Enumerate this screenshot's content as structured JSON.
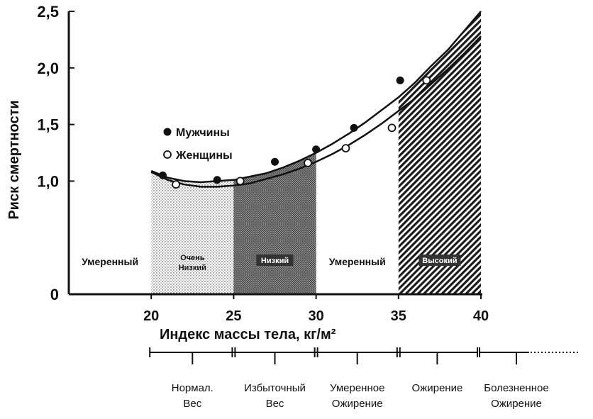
{
  "chart_data": {
    "type": "scatter",
    "title": "",
    "xlabel": "Индекс массы тела, кг/м²",
    "ylabel": "Риск смертности",
    "xlim": [
      15,
      40
    ],
    "ylim": [
      0,
      2.5
    ],
    "x_ticks": [
      "20",
      "25",
      "30",
      "35",
      "40"
    ],
    "y_ticks": [
      "0",
      "1,0",
      "1,5",
      "2,0",
      "2,5"
    ],
    "legend": {
      "position": "upper-left",
      "entries": [
        "Мужчины",
        "Женщины"
      ]
    },
    "series": [
      {
        "name": "Мужчины",
        "marker": "filled-circle",
        "points": [
          {
            "x": 20.7,
            "y": 1.05
          },
          {
            "x": 24.0,
            "y": 1.01
          },
          {
            "x": 27.5,
            "y": 1.17
          },
          {
            "x": 30.0,
            "y": 1.28
          },
          {
            "x": 32.3,
            "y": 1.47
          },
          {
            "x": 35.1,
            "y": 1.89
          }
        ]
      },
      {
        "name": "Женщины",
        "marker": "open-circle",
        "points": [
          {
            "x": 21.5,
            "y": 0.97
          },
          {
            "x": 25.4,
            "y": 1.0
          },
          {
            "x": 29.5,
            "y": 1.16
          },
          {
            "x": 31.8,
            "y": 1.29
          },
          {
            "x": 34.6,
            "y": 1.47
          },
          {
            "x": 36.7,
            "y": 1.89
          }
        ]
      }
    ],
    "fitted_curves": [
      {
        "series": "Мужчины",
        "x": [
          20,
          21,
          22,
          23,
          24,
          25,
          26,
          27,
          28,
          29,
          30,
          31,
          32,
          33,
          34,
          35,
          36,
          37,
          38,
          39,
          40
        ],
        "y": [
          1.09,
          1.03,
          1.0,
          0.99,
          1.0,
          1.01,
          1.04,
          1.07,
          1.12,
          1.18,
          1.25,
          1.33,
          1.42,
          1.52,
          1.63,
          1.74,
          1.87,
          2.02,
          2.16,
          2.33,
          2.5
        ]
      },
      {
        "series": "Женщины",
        "x": [
          20,
          21,
          22,
          23,
          24,
          25,
          26,
          27,
          28,
          29,
          30,
          31,
          32,
          33,
          34,
          35,
          36,
          37,
          38,
          39,
          40
        ],
        "y": [
          1.08,
          1.01,
          0.97,
          0.95,
          0.95,
          0.96,
          0.98,
          1.02,
          1.06,
          1.11,
          1.17,
          1.24,
          1.32,
          1.41,
          1.51,
          1.62,
          1.73,
          1.86,
          1.99,
          2.13,
          2.28
        ]
      }
    ],
    "risk_zones": [
      {
        "label": "Умеренный",
        "x_from": 15,
        "x_to": 20,
        "pattern": "none"
      },
      {
        "label": "Очень Низкий",
        "x_from": 20,
        "x_to": 25,
        "pattern": "light-dots"
      },
      {
        "label": "Низкий",
        "x_from": 25,
        "x_to": 30,
        "pattern": "dense-dots"
      },
      {
        "label": "Умеренный",
        "x_from": 30,
        "x_to": 35,
        "pattern": "none"
      },
      {
        "label": "Высокий",
        "x_from": 35,
        "x_to": 40,
        "pattern": "diagonal-hatch"
      }
    ],
    "weight_categories": [
      {
        "lines": [
          "Нормал.",
          "Вес"
        ],
        "x_from": 20,
        "x_to": 25
      },
      {
        "lines": [
          "Избыточный",
          "Вес"
        ],
        "x_from": 25,
        "x_to": 30
      },
      {
        "lines": [
          "Умеренное",
          "Ожирение"
        ],
        "x_from": 30,
        "x_to": 35
      },
      {
        "lines": [
          "Ожирение",
          ""
        ],
        "x_from": 35,
        "x_to": 39.7
      },
      {
        "lines": [
          "Болезненное",
          "Ожирение"
        ],
        "x_from": 40,
        "x_to": 44,
        "open_ended": true
      }
    ],
    "colors": {
      "ink": "#111111",
      "zone_fill": "#555555"
    }
  }
}
